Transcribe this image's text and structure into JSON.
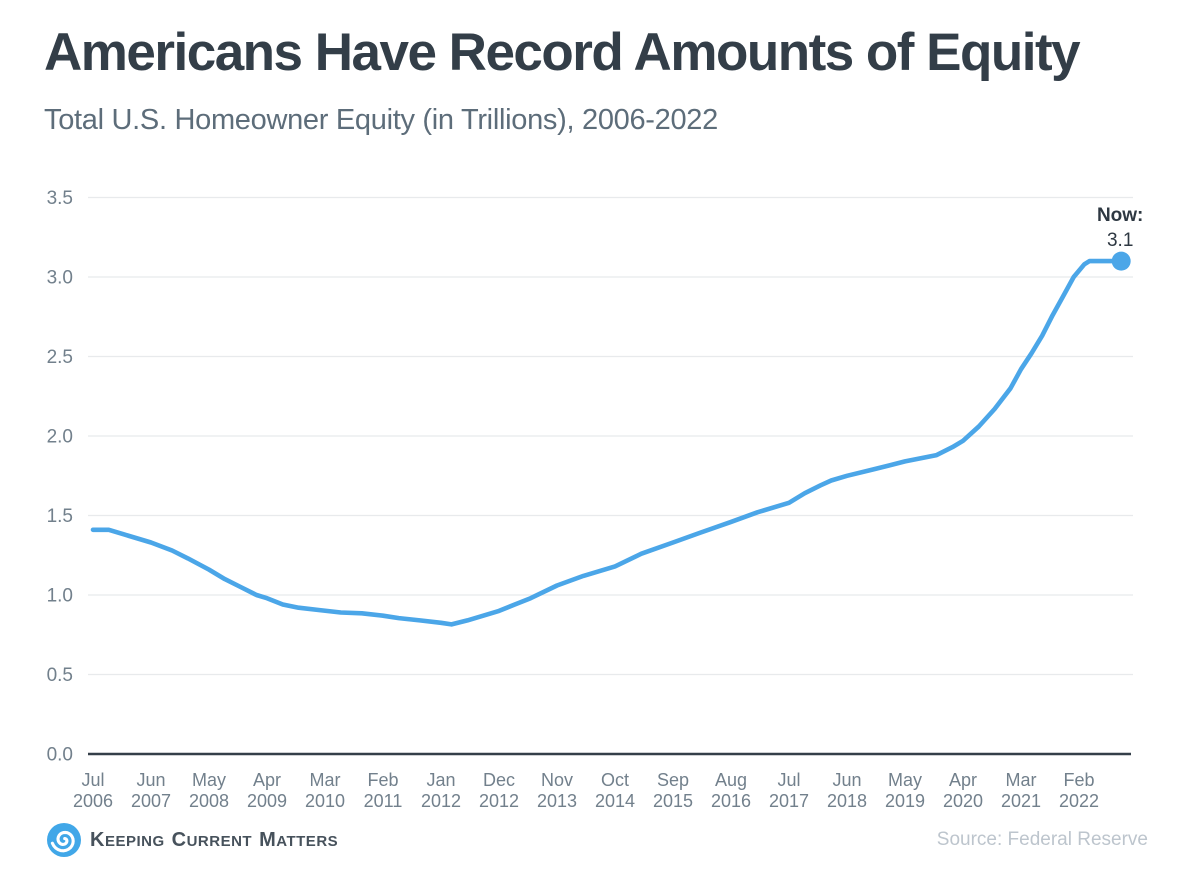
{
  "header": {
    "title": "Americans Have Record Amounts of Equity",
    "subtitle": "Total U.S. Homeowner Equity (in Trillions), 2006-2022"
  },
  "chart_data": {
    "type": "line",
    "title": "Americans Have Record Amounts of Equity",
    "subtitle": "Total U.S. Homeowner Equity (in Trillions), 2006-2022",
    "units": "trillions of U.S. dollars",
    "ylim": [
      0,
      3.5
    ],
    "grid": true,
    "legend": "none",
    "y_ticks": [
      "0.0",
      "0.5",
      "1.0",
      "1.5",
      "2.0",
      "2.5",
      "3.0",
      "3.5"
    ],
    "x_ticks": [
      {
        "month": "Jul",
        "year": "2006"
      },
      {
        "month": "Jun",
        "year": "2007"
      },
      {
        "month": "May",
        "year": "2008"
      },
      {
        "month": "Apr",
        "year": "2009"
      },
      {
        "month": "Mar",
        "year": "2010"
      },
      {
        "month": "Feb",
        "year": "2011"
      },
      {
        "month": "Jan",
        "year": "2012"
      },
      {
        "month": "Dec",
        "year": "2012"
      },
      {
        "month": "Nov",
        "year": "2013"
      },
      {
        "month": "Oct",
        "year": "2014"
      },
      {
        "month": "Sep",
        "year": "2015"
      },
      {
        "month": "Aug",
        "year": "2016"
      },
      {
        "month": "Jul",
        "year": "2017"
      },
      {
        "month": "Jun",
        "year": "2018"
      },
      {
        "month": "May",
        "year": "2019"
      },
      {
        "month": "Apr",
        "year": "2020"
      },
      {
        "month": "Mar",
        "year": "2021"
      },
      {
        "month": "Feb",
        "year": "2022"
      }
    ],
    "values_at_ticks": [
      1.41,
      1.33,
      1.16,
      0.98,
      0.9,
      0.87,
      0.82,
      0.9,
      1.06,
      1.18,
      1.33,
      1.46,
      1.58,
      1.75,
      1.84,
      1.97,
      2.42,
      3.0
    ],
    "series": [
      {
        "name": "Total U.S. Homeowner Equity (in Trillions)",
        "x_unit": "months since Jul 2006",
        "points": [
          [
            0,
            1.41
          ],
          [
            3,
            1.41
          ],
          [
            6,
            1.38
          ],
          [
            11,
            1.33
          ],
          [
            15,
            1.28
          ],
          [
            18,
            1.23
          ],
          [
            22,
            1.16
          ],
          [
            25,
            1.1
          ],
          [
            28,
            1.05
          ],
          [
            31,
            1.0
          ],
          [
            33,
            0.98
          ],
          [
            36,
            0.94
          ],
          [
            39,
            0.92
          ],
          [
            43,
            0.905
          ],
          [
            47,
            0.89
          ],
          [
            51,
            0.885
          ],
          [
            55,
            0.87
          ],
          [
            58,
            0.855
          ],
          [
            62,
            0.84
          ],
          [
            66,
            0.825
          ],
          [
            68,
            0.815
          ],
          [
            71,
            0.84
          ],
          [
            74,
            0.87
          ],
          [
            77,
            0.9
          ],
          [
            80,
            0.94
          ],
          [
            83,
            0.98
          ],
          [
            88,
            1.06
          ],
          [
            93,
            1.12
          ],
          [
            99,
            1.18
          ],
          [
            104,
            1.26
          ],
          [
            110,
            1.33
          ],
          [
            115,
            1.39
          ],
          [
            121,
            1.46
          ],
          [
            126,
            1.52
          ],
          [
            132,
            1.58
          ],
          [
            135,
            1.64
          ],
          [
            138,
            1.69
          ],
          [
            140,
            1.72
          ],
          [
            143,
            1.75
          ],
          [
            148,
            1.79
          ],
          [
            154,
            1.84
          ],
          [
            157,
            1.86
          ],
          [
            160,
            1.88
          ],
          [
            163,
            1.93
          ],
          [
            165,
            1.97
          ],
          [
            168,
            2.06
          ],
          [
            171,
            2.17
          ],
          [
            174,
            2.3
          ],
          [
            176,
            2.42
          ],
          [
            178,
            2.52
          ],
          [
            180,
            2.63
          ],
          [
            182,
            2.76
          ],
          [
            184,
            2.88
          ],
          [
            186,
            3.0
          ],
          [
            188,
            3.08
          ],
          [
            189,
            3.1
          ],
          [
            195,
            3.1
          ]
        ]
      }
    ],
    "annotation": {
      "label": "Now:",
      "value": "3.1",
      "x_month": 195
    }
  },
  "footer": {
    "brand_words": [
      "Keeping",
      "Current",
      "Matters"
    ],
    "source": "Source: Federal Reserve"
  },
  "colors": {
    "line": "#4ba6e8",
    "marker": "#4ba6e8",
    "title": "#333e48",
    "subtitle": "#5d6d7a",
    "axis_text": "#72808c",
    "annotation_text": "#2e3842",
    "grid": "#e8eaec",
    "axis_line": "#343f49",
    "brand_text": "#47525c",
    "logo_blue": "#41a7e8",
    "source_text": "#bdc5cd"
  }
}
